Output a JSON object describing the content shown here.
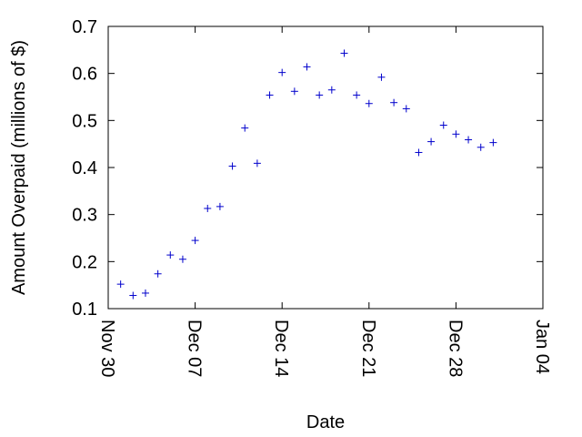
{
  "chart_data": {
    "type": "scatter",
    "title": "",
    "xlabel": "Date",
    "ylabel": "Amount Overpaid (millions of $)",
    "x_ticks": [
      "Nov 30",
      "Dec 07",
      "Dec 14",
      "Dec 21",
      "Dec 28",
      "Jan 04"
    ],
    "y_ticks": [
      "0.1",
      "0.2",
      "0.3",
      "0.4",
      "0.5",
      "0.6",
      "0.7"
    ],
    "xlim": [
      "Nov 30",
      "Jan 04"
    ],
    "ylim": [
      0.1,
      0.7
    ],
    "grid": false,
    "marker": "+",
    "marker_color": "#0000cc",
    "series": [
      {
        "points": [
          {
            "x": "Dec 01",
            "y": 0.152
          },
          {
            "x": "Dec 02",
            "y": 0.128
          },
          {
            "x": "Dec 03",
            "y": 0.133
          },
          {
            "x": "Dec 04",
            "y": 0.174
          },
          {
            "x": "Dec 05",
            "y": 0.214
          },
          {
            "x": "Dec 06",
            "y": 0.205
          },
          {
            "x": "Dec 07",
            "y": 0.245
          },
          {
            "x": "Dec 08",
            "y": 0.313
          },
          {
            "x": "Dec 09",
            "y": 0.317
          },
          {
            "x": "Dec 10",
            "y": 0.403
          },
          {
            "x": "Dec 11",
            "y": 0.484
          },
          {
            "x": "Dec 12",
            "y": 0.409
          },
          {
            "x": "Dec 13",
            "y": 0.554
          },
          {
            "x": "Dec 14",
            "y": 0.602
          },
          {
            "x": "Dec 15",
            "y": 0.562
          },
          {
            "x": "Dec 16",
            "y": 0.614
          },
          {
            "x": "Dec 17",
            "y": 0.554
          },
          {
            "x": "Dec 18",
            "y": 0.565
          },
          {
            "x": "Dec 19",
            "y": 0.643
          },
          {
            "x": "Dec 20",
            "y": 0.554
          },
          {
            "x": "Dec 21",
            "y": 0.536
          },
          {
            "x": "Dec 22",
            "y": 0.592
          },
          {
            "x": "Dec 23",
            "y": 0.538
          },
          {
            "x": "Dec 24",
            "y": 0.525
          },
          {
            "x": "Dec 25",
            "y": 0.432
          },
          {
            "x": "Dec 26",
            "y": 0.455
          },
          {
            "x": "Dec 27",
            "y": 0.49
          },
          {
            "x": "Dec 28",
            "y": 0.471
          },
          {
            "x": "Dec 29",
            "y": 0.459
          },
          {
            "x": "Dec 30",
            "y": 0.443
          },
          {
            "x": "Dec 31",
            "y": 0.453
          }
        ]
      }
    ]
  }
}
